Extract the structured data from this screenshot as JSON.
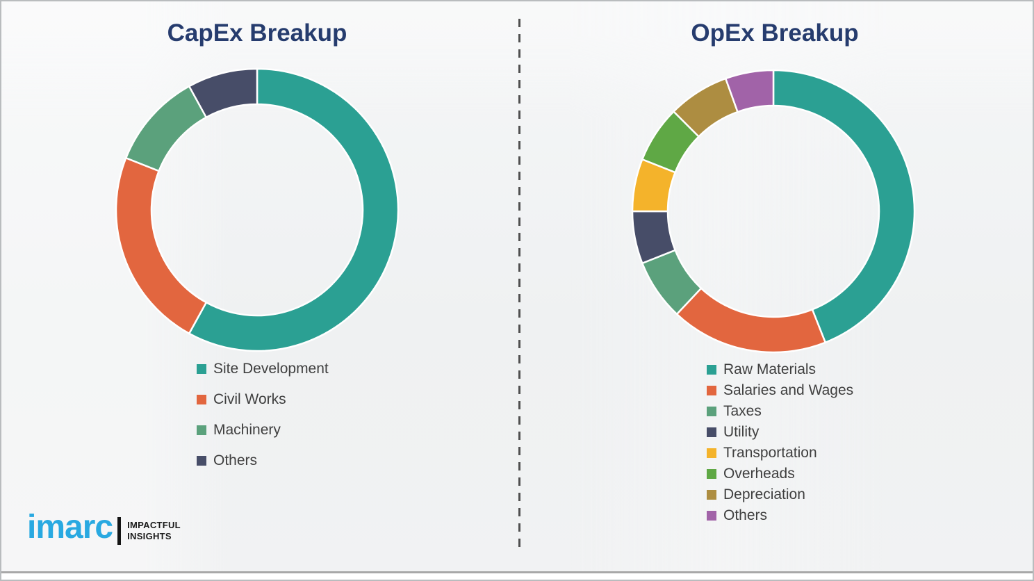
{
  "titles": {
    "capex": "CapEx Breakup",
    "opex": "OpEx Breakup"
  },
  "logo": {
    "brand": "imarc",
    "tagline_line1": "IMPACTFUL",
    "tagline_line2": "INSIGHTS",
    "brand_color": "#29A9E1"
  },
  "style": {
    "title_color": "#263C6E",
    "legend_text_color": "#3F3F3F",
    "background_color": "#F0F2F3",
    "divider_color": "#4F4F4F"
  },
  "chart_data": [
    {
      "type": "pie",
      "variant": "donut",
      "title": "CapEx Breakup",
      "labels": [
        "Site Development",
        "Civil Works",
        "Machinery",
        "Others"
      ],
      "values": [
        58,
        23,
        11,
        8
      ],
      "colors": [
        "#2BA093",
        "#E2663F",
        "#5BA17C",
        "#474D68"
      ],
      "start_angle_deg": 0,
      "direction": "clockwise",
      "inner_radius_ratio": 0.75,
      "legend_position": "below-left",
      "data_labels_shown": false
    },
    {
      "type": "pie",
      "variant": "donut",
      "title": "OpEx Breakup",
      "labels": [
        "Raw Materials",
        "Salaries and Wages",
        "Taxes",
        "Utility",
        "Transportation",
        "Overheads",
        "Depreciation",
        "Others"
      ],
      "values": [
        44,
        18,
        7,
        6,
        6,
        6.5,
        7,
        5.5
      ],
      "colors": [
        "#2BA093",
        "#E2663F",
        "#5BA17C",
        "#474D68",
        "#F4B32B",
        "#5FA845",
        "#AD8D41",
        "#A163A8"
      ],
      "start_angle_deg": 0,
      "direction": "clockwise",
      "inner_radius_ratio": 0.75,
      "legend_position": "below-left",
      "data_labels_shown": false
    }
  ]
}
